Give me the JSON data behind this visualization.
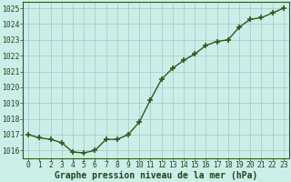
{
  "x": [
    0,
    1,
    2,
    3,
    4,
    5,
    6,
    7,
    8,
    9,
    10,
    11,
    12,
    13,
    14,
    15,
    16,
    17,
    18,
    19,
    20,
    21,
    22,
    23
  ],
  "y": [
    1017.0,
    1016.8,
    1016.7,
    1016.5,
    1015.9,
    1015.85,
    1016.0,
    1016.7,
    1016.7,
    1017.0,
    1017.8,
    1019.2,
    1020.5,
    1021.2,
    1021.7,
    1022.1,
    1022.65,
    1022.9,
    1023.0,
    1023.8,
    1024.3,
    1024.4,
    1024.7,
    1025.0
  ],
  "line_color": "#2d5a1b",
  "marker": "+",
  "marker_size": 4,
  "background_color": "#cceee8",
  "grid_color": "#aad4ce",
  "xlabel": "Graphe pression niveau de la mer (hPa)",
  "xlabel_color": "#1a4a1a",
  "xlabel_fontsize": 7,
  "yticks": [
    1016,
    1017,
    1018,
    1019,
    1020,
    1021,
    1022,
    1023,
    1024,
    1025
  ],
  "xticks": [
    0,
    1,
    2,
    3,
    4,
    5,
    6,
    7,
    8,
    9,
    10,
    11,
    12,
    13,
    14,
    15,
    16,
    17,
    18,
    19,
    20,
    21,
    22,
    23
  ],
  "ylim": [
    1015.5,
    1025.4
  ],
  "xlim": [
    -0.5,
    23.5
  ],
  "tick_color": "#1a4a1a",
  "tick_fontsize": 5.8,
  "spine_color": "#2d5a1b",
  "linewidth": 1.0,
  "marker_linewidth": 1.2
}
